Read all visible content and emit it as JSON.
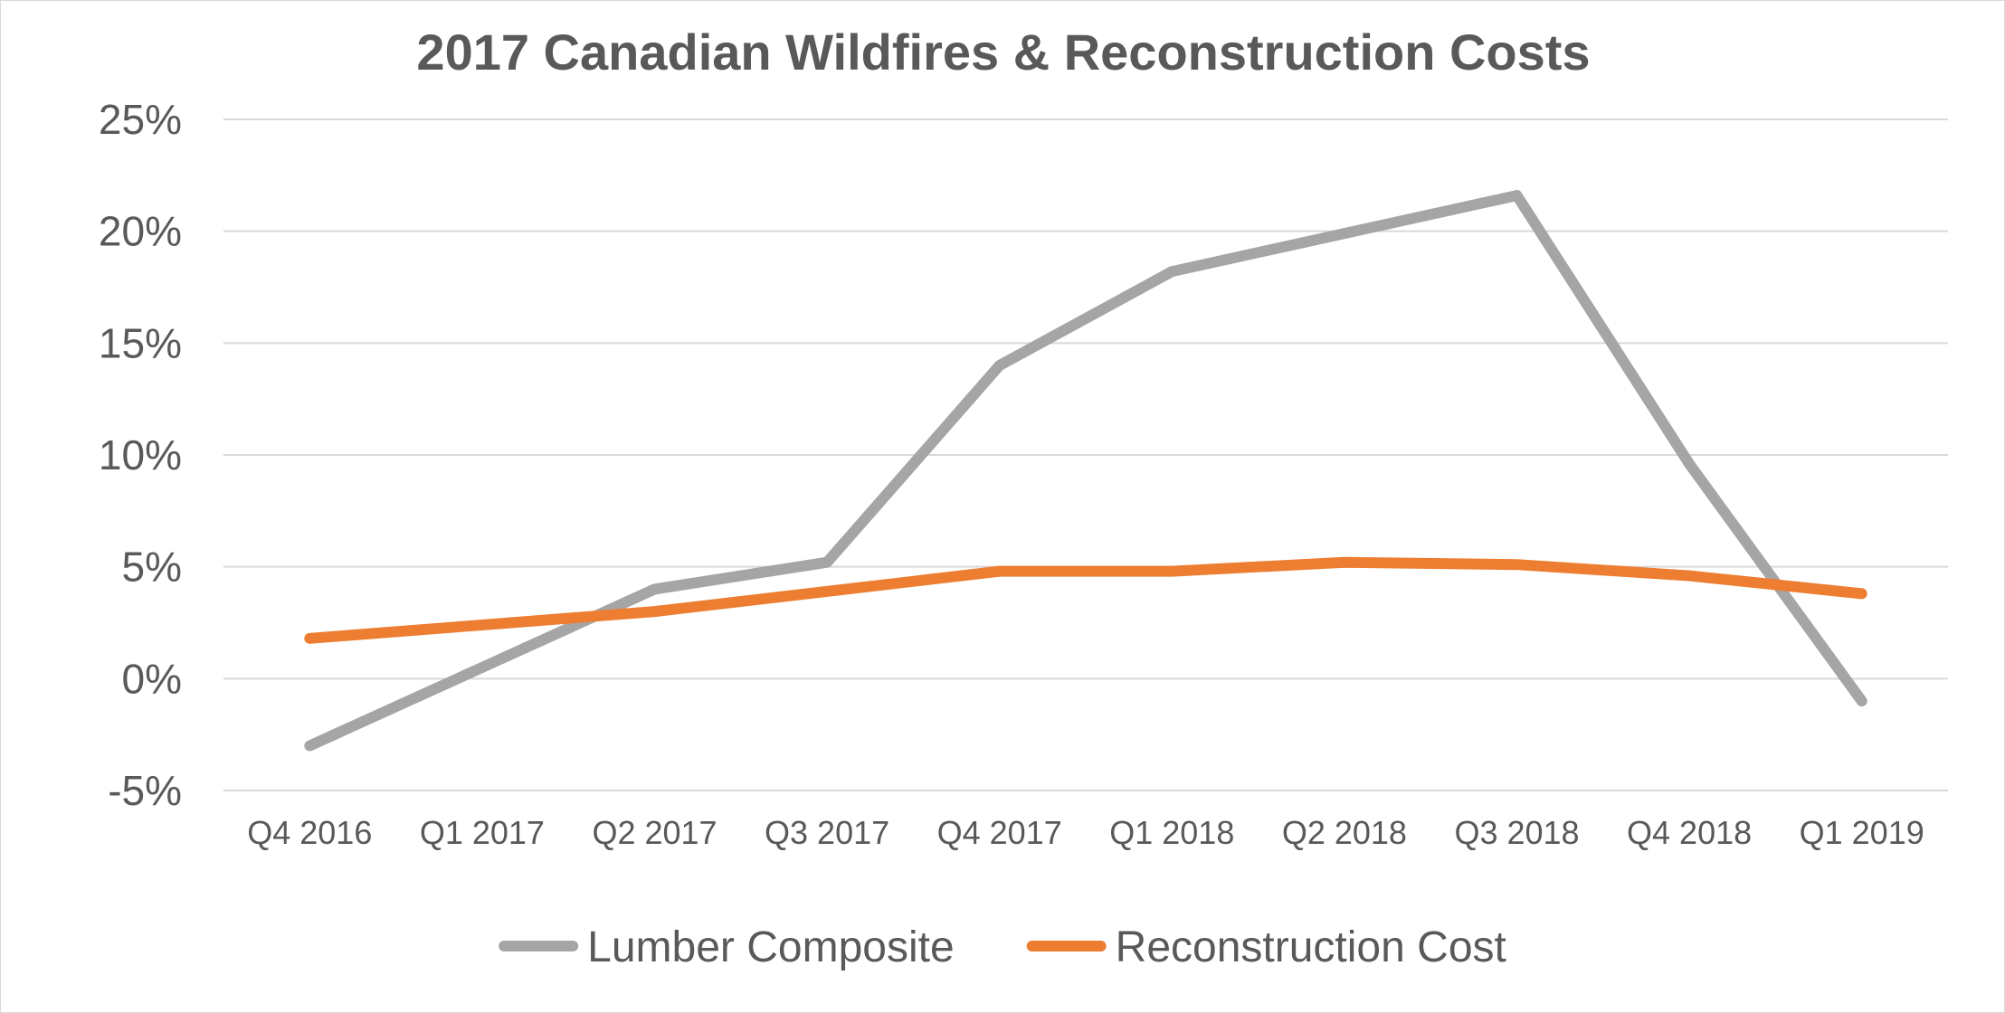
{
  "chart_data": {
    "type": "line",
    "title": "2017 Canadian Wildfires & Reconstruction Costs",
    "xlabel": "",
    "ylabel": "",
    "categories": [
      "Q4 2016",
      "Q1 2017",
      "Q2 2017",
      "Q3 2017",
      "Q4 2017",
      "Q1 2018",
      "Q2 2018",
      "Q3 2018",
      "Q4 2018",
      "Q1 2019"
    ],
    "ylim": [
      -5,
      25
    ],
    "yticks": [
      -5,
      0,
      5,
      10,
      15,
      20,
      25
    ],
    "ytick_labels": [
      "-5%",
      "0%",
      "5%",
      "10%",
      "15%",
      "20%",
      "25%"
    ],
    "grid": true,
    "legend_position": "bottom",
    "series": [
      {
        "name": "Lumber Composite",
        "color": "#a5a5a5",
        "values": [
          -3.0,
          0.5,
          4.0,
          5.2,
          14.0,
          18.2,
          19.9,
          21.6,
          9.6,
          -1.0
        ]
      },
      {
        "name": "Reconstruction Cost",
        "color": "#ed7d31",
        "values": [
          1.8,
          2.4,
          3.0,
          3.9,
          4.8,
          4.8,
          5.2,
          5.1,
          4.6,
          3.8
        ]
      }
    ]
  }
}
